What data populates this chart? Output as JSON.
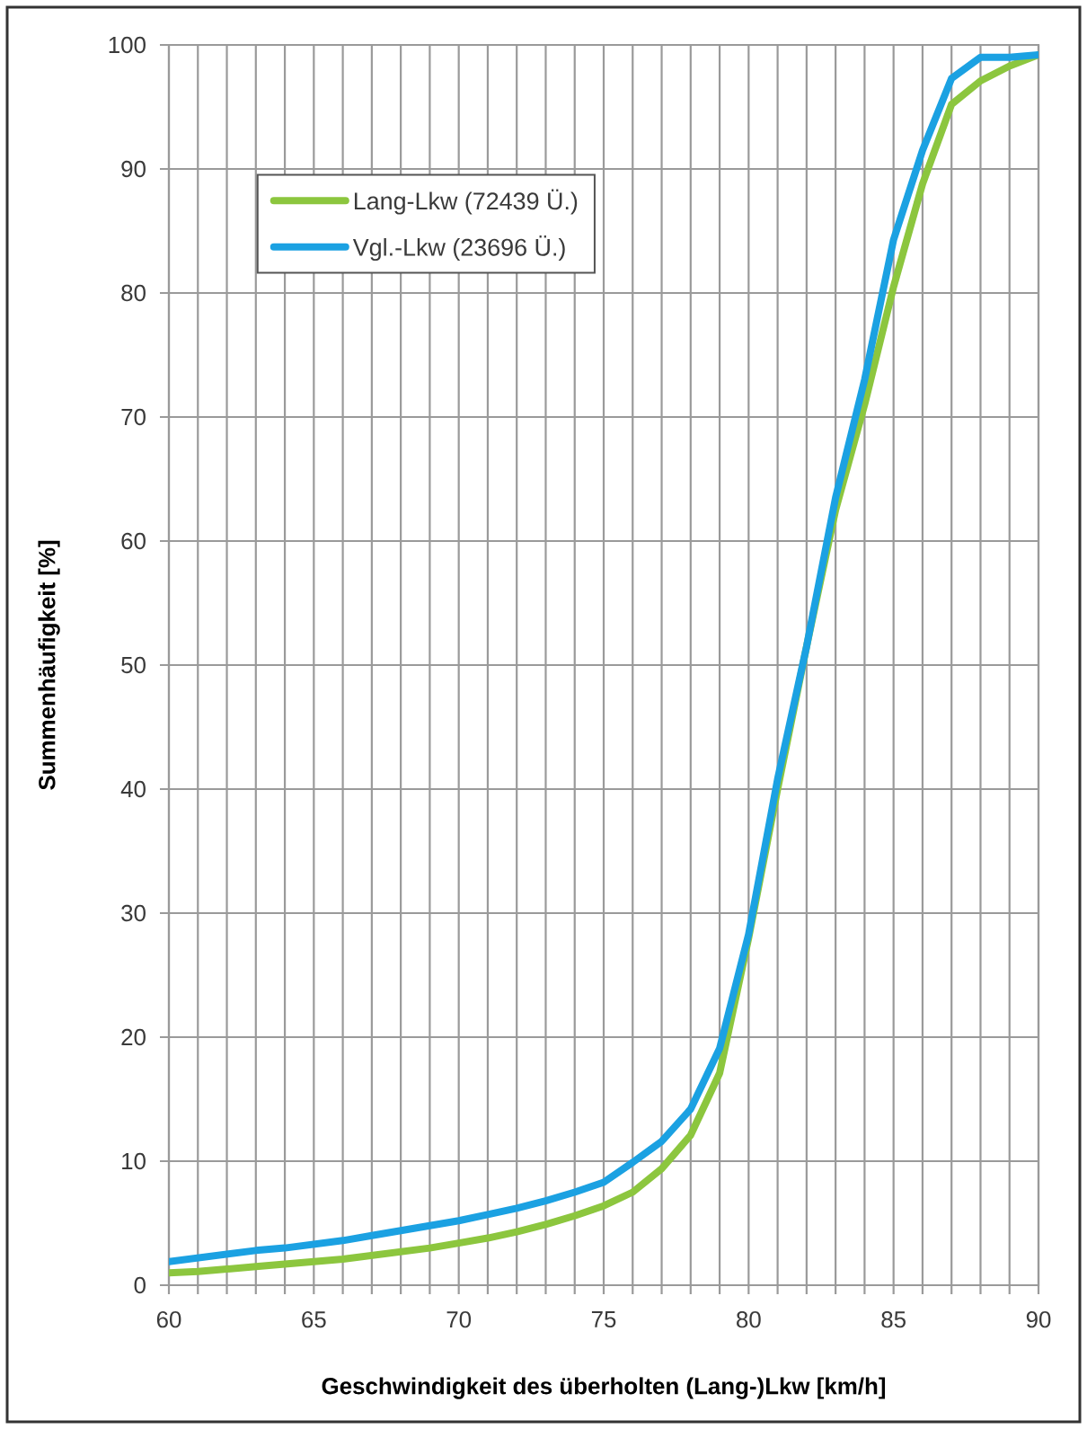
{
  "chart_data": {
    "type": "line",
    "xlabel": "Geschwindigkeit des überholten (Lang-)Lkw [km/h]",
    "ylabel": "Summenhäufigkeit [%]",
    "x": [
      60,
      61,
      62,
      63,
      64,
      65,
      66,
      67,
      68,
      69,
      70,
      71,
      72,
      73,
      74,
      75,
      76,
      77,
      78,
      79,
      80,
      81,
      82,
      83,
      84,
      85,
      86,
      87,
      88,
      89,
      90
    ],
    "series": [
      {
        "name": "Lang-Lkw (72439 Ü.)",
        "color": "#8cc63e",
        "values": [
          1.0,
          1.1,
          1.3,
          1.5,
          1.7,
          1.9,
          2.1,
          2.4,
          2.7,
          3.0,
          3.4,
          3.8,
          4.3,
          4.9,
          5.6,
          6.4,
          7.5,
          9.4,
          12.1,
          17.1,
          28,
          40,
          51.5,
          62.5,
          71,
          80.5,
          88.8,
          95.2,
          97.1,
          98.3,
          99.2
        ]
      },
      {
        "name": "Vgl.-Lkw (23696 Ü.)",
        "color": "#1ba1e2",
        "values": [
          1.9,
          2.2,
          2.5,
          2.8,
          3.0,
          3.3,
          3.6,
          4.0,
          4.4,
          4.8,
          5.2,
          5.7,
          6.2,
          6.8,
          7.5,
          8.3,
          9.9,
          11.6,
          14.2,
          19.1,
          28.3,
          40.8,
          51.5,
          63.5,
          73,
          84.3,
          91.5,
          97.3,
          99,
          99,
          99.2
        ]
      }
    ],
    "xlim": [
      60,
      90
    ],
    "xticks": [
      60,
      {
        "value": 61,
        "label": null
      },
      {
        "value": 62,
        "label": null
      },
      {
        "value": 63,
        "label": null
      },
      {
        "value": 64,
        "label": null
      },
      65,
      {
        "value": 66,
        "label": null
      },
      {
        "value": 67,
        "label": null
      },
      {
        "value": 68,
        "label": null
      },
      {
        "value": 69,
        "label": null
      },
      70,
      {
        "value": 71,
        "label": null
      },
      {
        "value": 72,
        "label": null
      },
      {
        "value": 73,
        "label": null
      },
      {
        "value": 74,
        "label": null
      },
      75,
      {
        "value": 76,
        "label": null
      },
      {
        "value": 77,
        "label": null
      },
      {
        "value": 78,
        "label": null
      },
      {
        "value": 79,
        "label": null
      },
      80,
      {
        "value": 81,
        "label": null
      },
      {
        "value": 82,
        "label": null
      },
      {
        "value": 83,
        "label": null
      },
      {
        "value": 84,
        "label": null
      },
      85,
      {
        "value": 86,
        "label": null
      },
      {
        "value": 87,
        "label": null
      },
      {
        "value": 88,
        "label": null
      },
      {
        "value": 89,
        "label": null
      },
      90
    ],
    "ylim": [
      0,
      100
    ],
    "yticks": [
      0,
      10,
      20,
      30,
      40,
      50,
      60,
      70,
      80,
      90,
      100
    ],
    "grid": true,
    "legend": "top left",
    "line_style": "solid"
  }
}
